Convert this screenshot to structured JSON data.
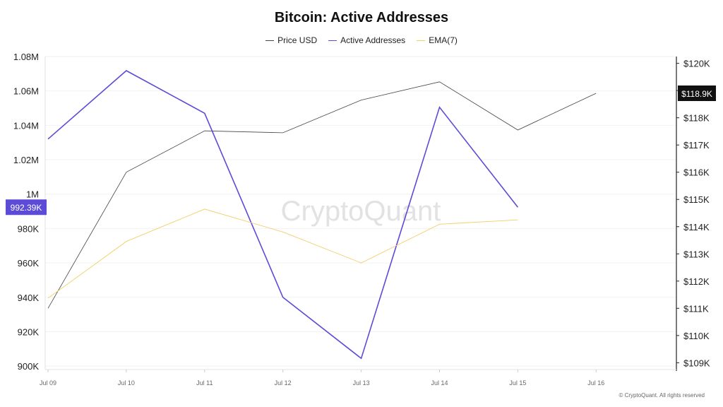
{
  "chart_data": {
    "type": "line",
    "title": "Bitcoin: Active Addresses",
    "categories": [
      "Jul 09",
      "Jul 10",
      "Jul 11",
      "Jul 12",
      "Jul 13",
      "Jul 14",
      "Jul 15",
      "Jul 16"
    ],
    "series": [
      {
        "name": "Price USD",
        "axis": "right",
        "color": "#444444",
        "values": [
          111000,
          116000,
          117520,
          117450,
          118650,
          119320,
          117550,
          118900
        ]
      },
      {
        "name": "Active Addresses",
        "axis": "left",
        "color": "#5b4bd6",
        "values": [
          1032000,
          1071800,
          1047000,
          940000,
          904500,
          1050500,
          992390,
          null
        ]
      },
      {
        "name": "EMA(7)",
        "axis": "left",
        "color": "#f2cf6a",
        "values": [
          939500,
          972500,
          991300,
          978000,
          960000,
          982500,
          985000,
          null
        ]
      }
    ],
    "left_axis": {
      "ylim": [
        898000,
        1080000
      ],
      "ticks": [
        900000,
        920000,
        940000,
        960000,
        980000,
        1000000,
        1020000,
        1040000,
        1060000,
        1080000
      ],
      "tick_labels": [
        "900K",
        "920K",
        "940K",
        "960K",
        "980K",
        "1M",
        "1.02M",
        "1.04M",
        "1.06M",
        "1.08M"
      ]
    },
    "right_axis": {
      "ylim": [
        108750,
        120250
      ],
      "ticks": [
        109000,
        110000,
        111000,
        112000,
        113000,
        114000,
        115000,
        116000,
        117000,
        118000,
        119000,
        120000
      ],
      "tick_labels": [
        "$109K",
        "$110K",
        "$111K",
        "$112K",
        "$113K",
        "$114K",
        "$115K",
        "$116K",
        "$117K",
        "$118K",
        "$119K",
        "$120K"
      ]
    },
    "left_badge": {
      "value": 992390,
      "label": "992.39K",
      "color": "#5b4bd6"
    },
    "right_badge": {
      "value": 118900,
      "label": "$118.9K",
      "color": "#111111"
    },
    "legend_position": "top-center",
    "grid": true
  },
  "watermark": "CryptoQuant",
  "copyright": "© CryptoQuant. All rights reserved"
}
